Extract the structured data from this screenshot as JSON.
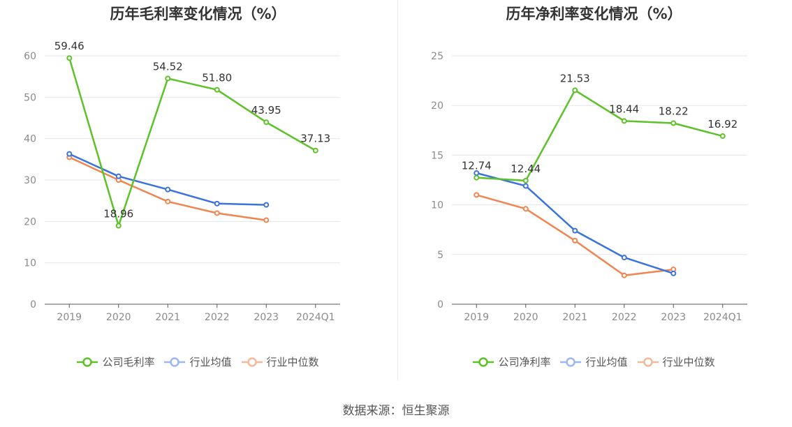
{
  "chart_data": [
    {
      "type": "line",
      "title": "历年毛利率变化情况（%）",
      "categories": [
        "2019",
        "2020",
        "2021",
        "2022",
        "2023",
        "2024Q1"
      ],
      "ylim": [
        0,
        60
      ],
      "yticks": [
        0,
        10,
        20,
        30,
        40,
        50,
        60
      ],
      "grid": true,
      "legend_position": "bottom",
      "series": [
        {
          "name": "公司毛利率",
          "color": "#5bc227",
          "labels": true,
          "values": [
            59.46,
            18.96,
            54.52,
            51.8,
            43.95,
            37.13
          ],
          "value_labels": [
            "59.46",
            "18.96",
            "54.52",
            "51.80",
            "43.95",
            "37.13"
          ]
        },
        {
          "name": "行业均值",
          "color": "#3b73dc",
          "labels": false,
          "values": [
            36.3,
            30.9,
            27.7,
            24.3,
            24.0,
            null
          ]
        },
        {
          "name": "行业中位数",
          "color": "#f0854f",
          "labels": false,
          "values": [
            35.5,
            30.0,
            24.8,
            22.0,
            20.3,
            null
          ]
        }
      ]
    },
    {
      "type": "line",
      "title": "历年净利率变化情况（%）",
      "categories": [
        "2019",
        "2020",
        "2021",
        "2022",
        "2023",
        "2024Q1"
      ],
      "ylim": [
        0,
        25
      ],
      "yticks": [
        0,
        5,
        10,
        15,
        20,
        25
      ],
      "grid": true,
      "legend_position": "bottom",
      "series": [
        {
          "name": "公司净利率",
          "color": "#5bc227",
          "labels": true,
          "values": [
            12.74,
            12.44,
            21.53,
            18.44,
            18.22,
            16.92
          ],
          "value_labels": [
            "12.74",
            "12.44",
            "21.53",
            "18.44",
            "18.22",
            "16.92"
          ]
        },
        {
          "name": "行业均值",
          "color": "#3b73dc",
          "labels": false,
          "values": [
            13.2,
            11.9,
            7.4,
            4.7,
            3.1,
            null
          ]
        },
        {
          "name": "行业中位数",
          "color": "#f0854f",
          "labels": false,
          "values": [
            11.0,
            9.6,
            6.4,
            2.9,
            3.5,
            null
          ]
        }
      ]
    }
  ],
  "source": "数据来源：恒生聚源"
}
